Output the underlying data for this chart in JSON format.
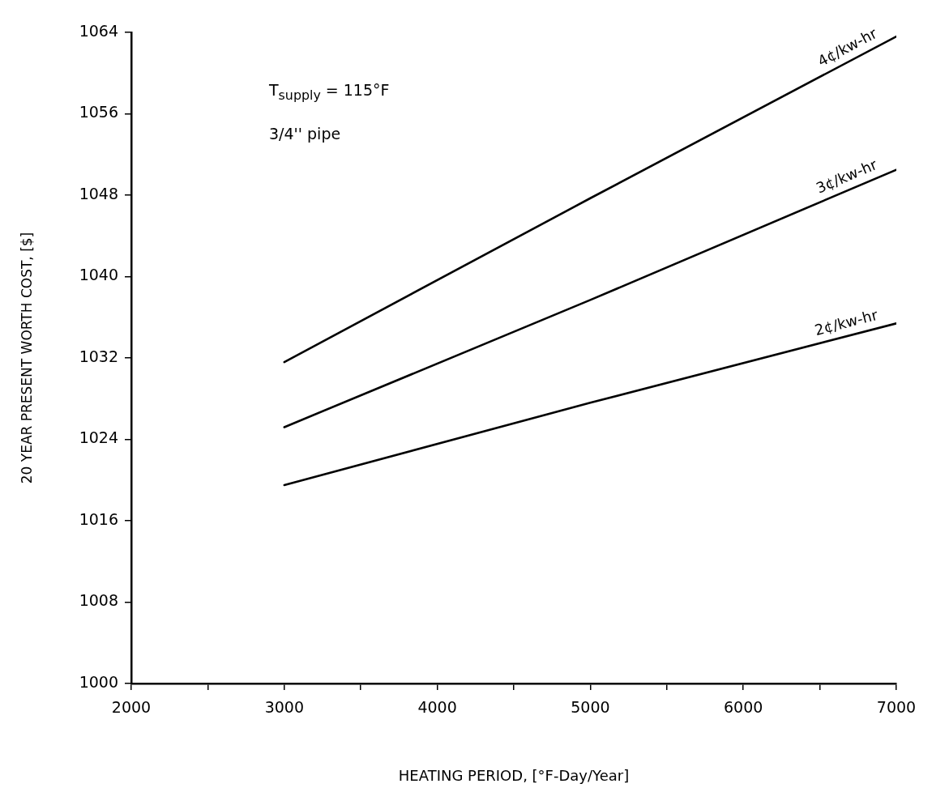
{
  "chart_data": {
    "type": "line",
    "xlabel": "HEATING PERIOD, [°F-Day/Year]",
    "ylabel": "20 YEAR PRESENT WORTH COST, [$]",
    "annotations": [
      "T$_{supply}$ = 115°F",
      "3/4'' pipe"
    ],
    "xlim": [
      2000,
      7000
    ],
    "xticks": [
      2000,
      {
        "value": 2500,
        "label": null
      },
      3000,
      {
        "value": 3500,
        "label": null
      },
      4000,
      {
        "value": 4500,
        "label": null
      },
      5000,
      {
        "value": 5500,
        "label": null
      },
      6000,
      {
        "value": 6500,
        "label": null
      },
      7000
    ],
    "ylim": [
      1000,
      1064
    ],
    "yticks": [
      1000,
      1008,
      1016,
      1024,
      1032,
      1040,
      1048,
      1056,
      1064
    ],
    "grid": false,
    "legend": false,
    "marker": "none",
    "line_style": "solid",
    "series": [
      {
        "name": "4¢/kw-hr",
        "color": "#000000",
        "x": [
          3000,
          5000,
          7000
        ],
        "values": [
          1031.6,
          1047.7,
          1063.6
        ]
      },
      {
        "name": "3¢/kw-hr",
        "color": "#000000",
        "x": [
          3000,
          5000,
          7000
        ],
        "values": [
          1025.2,
          1037.7,
          1050.5
        ]
      },
      {
        "name": "2¢/kw-hr",
        "color": "#000000",
        "x": [
          3000,
          5000,
          7000
        ],
        "values": [
          1019.5,
          1027.6,
          1035.4
        ]
      }
    ]
  }
}
